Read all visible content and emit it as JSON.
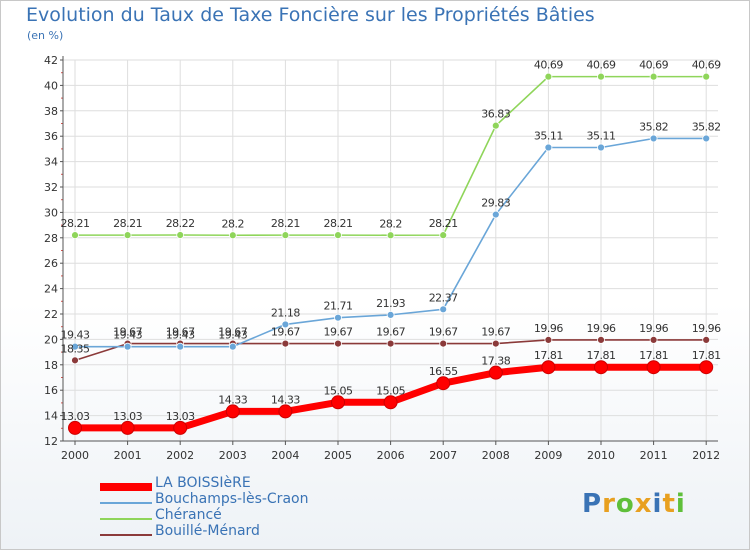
{
  "chart_data": {
    "type": "line",
    "title": "Evolution du Taux de Taxe Foncière sur les Propriétés Bâties",
    "ylabel": "(en %)",
    "x": [
      "2000",
      "2001",
      "2002",
      "2003",
      "2004",
      "2005",
      "2006",
      "2007",
      "2008",
      "2009",
      "2010",
      "2011",
      "2012"
    ],
    "ylim": [
      12,
      42
    ],
    "yticks": [
      "12",
      "14",
      "16",
      "18",
      "20",
      "22",
      "24",
      "26",
      "28",
      "30",
      "32",
      "34",
      "36",
      "38",
      "40",
      "42"
    ],
    "grid": true,
    "legend_position": "bottom-left",
    "series": [
      {
        "name": "LA BOISSIèRE",
        "color": "#ff0000",
        "values": [
          13.03,
          13.03,
          13.03,
          14.33,
          14.33,
          15.05,
          15.05,
          16.55,
          17.38,
          17.81,
          17.81,
          17.81,
          17.81
        ],
        "labels": [
          "13.03",
          "13.03",
          "13.03",
          "14.33",
          "14.33",
          "15.05",
          "15.05",
          "16.55",
          "17.38",
          "17.81",
          "17.81",
          "17.81",
          "17.81"
        ]
      },
      {
        "name": "Bouchamps-lès-Craon",
        "color": "#6aa6d8",
        "values": [
          19.43,
          19.43,
          19.43,
          19.43,
          21.18,
          21.71,
          21.93,
          22.37,
          29.83,
          35.11,
          35.11,
          35.82,
          35.82
        ],
        "labels": [
          "19.43",
          "19.43",
          "19.43",
          "19.43",
          "21.18",
          "21.71",
          "21.93",
          "22.37",
          "29.83",
          "35.11",
          "35.11",
          "35.82",
          "35.82"
        ]
      },
      {
        "name": "Chérancé",
        "color": "#8fd55a",
        "values": [
          28.21,
          28.21,
          28.22,
          28.2,
          28.21,
          28.21,
          28.2,
          28.21,
          36.83,
          40.69,
          40.69,
          40.69,
          40.69
        ],
        "labels": [
          "28.21",
          "28.21",
          "28.22",
          "28.2",
          "28.21",
          "28.21",
          "28.2",
          "28.21",
          "36.83",
          "40.69",
          "40.69",
          "40.69",
          "40.69"
        ]
      },
      {
        "name": "Bouillé-Ménard",
        "color": "#8b3a3a",
        "values": [
          18.35,
          19.67,
          19.67,
          19.67,
          19.67,
          19.67,
          19.67,
          19.67,
          19.67,
          19.96,
          19.96,
          19.96,
          19.96
        ],
        "labels": [
          "18.35",
          "19.67",
          "19.67",
          "19.67",
          "19.67",
          "19.67",
          "19.67",
          "19.67",
          "19.67",
          "19.96",
          "19.96",
          "19.96",
          "19.96"
        ]
      }
    ]
  },
  "logo": {
    "text": "Proxiti",
    "letters": [
      "P",
      "r",
      "o",
      "x",
      "i",
      "t",
      "i"
    ],
    "colors": [
      "#3a73b5",
      "#e8a020",
      "#5fbf3a",
      "#e8a020",
      "#3a73b5",
      "#e8a020",
      "#5fbf3a"
    ]
  }
}
